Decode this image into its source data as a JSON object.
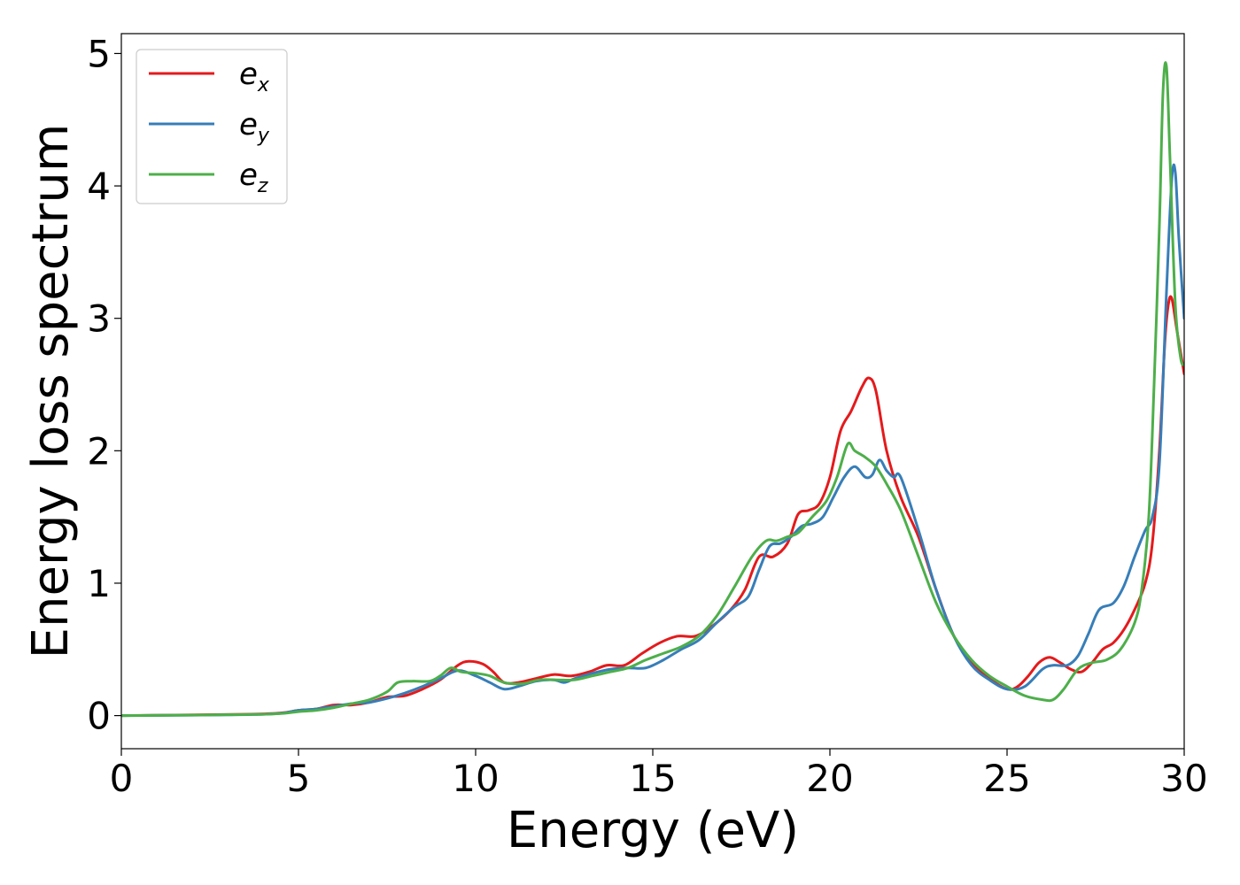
{
  "chart_data": {
    "type": "line",
    "title": "",
    "xlabel": "Energy (eV)",
    "ylabel": "Energy loss spectrum",
    "xlim": [
      0,
      30
    ],
    "ylim": [
      -0.25,
      5.15
    ],
    "xticks": [
      "0",
      "5",
      "10",
      "15",
      "20",
      "25",
      "30"
    ],
    "yticks": [
      "0",
      "1",
      "2",
      "3",
      "4",
      "5"
    ],
    "grid": false,
    "legend_position": "top-left",
    "series": [
      {
        "name": "e_x",
        "legend_main": "e",
        "legend_sub": "x",
        "color": "#e41a1c",
        "x": [
          0,
          3.5,
          4.5,
          5,
          5.5,
          6,
          6.5,
          7,
          7.5,
          8,
          8.5,
          9,
          9.5,
          9.8,
          10.2,
          10.5,
          10.8,
          11.2,
          11.7,
          12.2,
          12.7,
          13.2,
          13.7,
          14.2,
          14.7,
          15.2,
          15.7,
          16.2,
          16.7,
          17.2,
          17.6,
          18,
          18.4,
          18.8,
          19.1,
          19.4,
          19.7,
          20,
          20.3,
          20.6,
          20.9,
          21.1,
          21.3,
          21.6,
          22,
          22.5,
          23,
          23.5,
          24,
          24.5,
          25,
          25.3,
          25.6,
          25.9,
          26.2,
          26.5,
          26.8,
          27.1,
          27.4,
          27.7,
          28,
          28.3,
          28.6,
          28.9,
          29.1,
          29.3,
          29.45,
          29.55,
          29.65,
          29.8,
          30
        ],
        "y": [
          0,
          0.01,
          0.02,
          0.04,
          0.05,
          0.08,
          0.08,
          0.1,
          0.14,
          0.15,
          0.2,
          0.27,
          0.38,
          0.41,
          0.39,
          0.33,
          0.25,
          0.25,
          0.28,
          0.31,
          0.3,
          0.33,
          0.38,
          0.38,
          0.47,
          0.55,
          0.6,
          0.6,
          0.68,
          0.8,
          0.95,
          1.2,
          1.2,
          1.3,
          1.52,
          1.55,
          1.6,
          1.8,
          2.15,
          2.3,
          2.48,
          2.55,
          2.45,
          2.0,
          1.65,
          1.35,
          0.95,
          0.6,
          0.4,
          0.28,
          0.2,
          0.22,
          0.3,
          0.4,
          0.44,
          0.4,
          0.35,
          0.33,
          0.4,
          0.5,
          0.55,
          0.65,
          0.8,
          1.0,
          1.3,
          2.0,
          2.8,
          3.1,
          3.15,
          2.9,
          2.58
        ]
      },
      {
        "name": "e_y",
        "legend_main": "e",
        "legend_sub": "y",
        "color": "#377eb8",
        "x": [
          0,
          4,
          5,
          5.5,
          6,
          6.5,
          7,
          7.5,
          8,
          8.5,
          9,
          9.5,
          10,
          10.4,
          10.8,
          11.2,
          11.7,
          12.2,
          12.5,
          12.8,
          13.3,
          13.8,
          14.3,
          14.8,
          15.3,
          15.8,
          16.3,
          16.8,
          17.3,
          17.7,
          18,
          18.3,
          18.6,
          18.9,
          19.2,
          19.5,
          19.8,
          20.1,
          20.4,
          20.7,
          21,
          21.2,
          21.4,
          21.6,
          21.8,
          22,
          22.5,
          23,
          23.5,
          24,
          24.5,
          25,
          25.5,
          26,
          26.3,
          26.7,
          27,
          27.3,
          27.6,
          28,
          28.3,
          28.6,
          28.9,
          29.1,
          29.3,
          29.5,
          29.65,
          29.75,
          29.85,
          30
        ],
        "y": [
          0,
          0.01,
          0.04,
          0.05,
          0.07,
          0.09,
          0.1,
          0.13,
          0.17,
          0.22,
          0.28,
          0.34,
          0.3,
          0.25,
          0.2,
          0.22,
          0.26,
          0.27,
          0.25,
          0.28,
          0.32,
          0.35,
          0.36,
          0.36,
          0.42,
          0.5,
          0.57,
          0.7,
          0.82,
          0.9,
          1.1,
          1.28,
          1.3,
          1.35,
          1.43,
          1.45,
          1.5,
          1.65,
          1.8,
          1.88,
          1.8,
          1.82,
          1.93,
          1.85,
          1.8,
          1.8,
          1.4,
          0.95,
          0.6,
          0.38,
          0.27,
          0.2,
          0.22,
          0.35,
          0.38,
          0.38,
          0.45,
          0.62,
          0.8,
          0.85,
          0.98,
          1.2,
          1.4,
          1.5,
          1.9,
          3.2,
          4.05,
          4.1,
          3.6,
          3.0
        ]
      },
      {
        "name": "e_z",
        "legend_main": "e",
        "legend_sub": "z",
        "color": "#4daf4a",
        "x": [
          0,
          4,
          5,
          5.5,
          6,
          6.5,
          7,
          7.5,
          7.8,
          8.2,
          8.7,
          9.0,
          9.3,
          9.6,
          10,
          10.4,
          10.8,
          11.3,
          11.8,
          12.3,
          12.8,
          13.3,
          13.8,
          14.3,
          14.8,
          15.3,
          15.8,
          16.3,
          16.8,
          17.3,
          17.8,
          18.2,
          18.5,
          18.8,
          19.1,
          19.5,
          19.9,
          20.2,
          20.5,
          20.7,
          21,
          21.3,
          21.6,
          22,
          22.5,
          23,
          23.5,
          24,
          24.5,
          25,
          25.5,
          26,
          26.3,
          26.6,
          27,
          27.4,
          27.8,
          28.2,
          28.6,
          28.8,
          29,
          29.15,
          29.3,
          29.4,
          29.5,
          29.6,
          29.75,
          29.9,
          30
        ],
        "y": [
          0,
          0.01,
          0.03,
          0.04,
          0.06,
          0.09,
          0.12,
          0.18,
          0.25,
          0.26,
          0.26,
          0.3,
          0.36,
          0.33,
          0.32,
          0.3,
          0.25,
          0.24,
          0.27,
          0.27,
          0.27,
          0.3,
          0.33,
          0.36,
          0.42,
          0.47,
          0.52,
          0.6,
          0.75,
          0.97,
          1.2,
          1.32,
          1.32,
          1.35,
          1.38,
          1.5,
          1.62,
          1.8,
          2.05,
          2.0,
          1.95,
          1.88,
          1.75,
          1.55,
          1.2,
          0.85,
          0.6,
          0.42,
          0.3,
          0.22,
          0.15,
          0.12,
          0.12,
          0.2,
          0.35,
          0.4,
          0.42,
          0.5,
          0.7,
          0.95,
          1.5,
          2.5,
          3.7,
          4.7,
          4.9,
          4.2,
          3.1,
          2.7,
          2.65
        ]
      }
    ]
  }
}
